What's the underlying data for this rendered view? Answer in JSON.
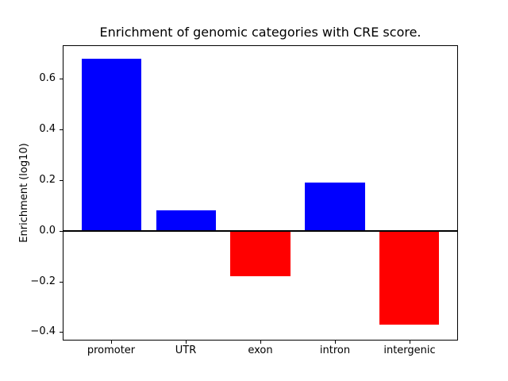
{
  "chart_data": {
    "type": "bar",
    "title": "Enrichment of genomic categories with CRE score.",
    "xlabel": "",
    "ylabel": "Enrichment (log10)",
    "categories": [
      "promoter",
      "UTR",
      "exon",
      "intron",
      "intergenic"
    ],
    "values": [
      0.68,
      0.08,
      -0.18,
      0.19,
      -0.37
    ],
    "bar_colors": [
      "#0000ff",
      "#0000ff",
      "#ff0000",
      "#0000ff",
      "#ff0000"
    ],
    "color_meaning": {
      "positive": "#0000ff",
      "negative": "#ff0000"
    },
    "ylim": [
      -0.43,
      0.73
    ],
    "yticks": [
      {
        "value": 0.6,
        "label": "0.6"
      },
      {
        "value": 0.4,
        "label": "0.4"
      },
      {
        "value": 0.2,
        "label": "0.2"
      },
      {
        "value": 0.0,
        "label": "0.0"
      },
      {
        "value": -0.2,
        "label": "−0.2"
      },
      {
        "value": -0.4,
        "label": "−0.4"
      }
    ],
    "bar_width_fraction": 0.8,
    "zero_line": true,
    "grid": false,
    "legend": false
  }
}
